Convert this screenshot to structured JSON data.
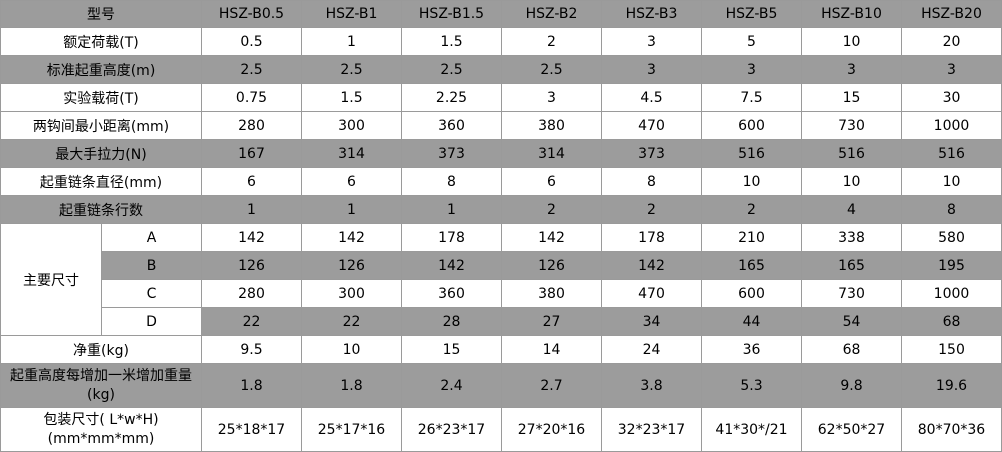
{
  "header": {
    "label": "型号",
    "models": [
      "HSZ-B0.5",
      "HSZ-B1",
      "HSZ-B1.5",
      "HSZ-B2",
      "HSZ-B3",
      "HSZ-B5",
      "HSZ-B10",
      "HSZ-B20"
    ]
  },
  "rows": {
    "rated_load": {
      "label": "额定荷载(T)",
      "values": [
        "0.5",
        "1",
        "1.5",
        "2",
        "3",
        "5",
        "10",
        "20"
      ]
    },
    "std_lift_height": {
      "label": "标准起重高度(m)",
      "values": [
        "2.5",
        "2.5",
        "2.5",
        "2.5",
        "3",
        "3",
        "3",
        "3"
      ]
    },
    "test_load": {
      "label": "实验载荷(T)",
      "values": [
        "0.75",
        "1.5",
        "2.25",
        "3",
        "4.5",
        "7.5",
        "15",
        "30"
      ]
    },
    "min_hook_distance": {
      "label": "两钩间最小距离(mm)",
      "values": [
        "280",
        "300",
        "360",
        "380",
        "470",
        "600",
        "730",
        "1000"
      ]
    },
    "max_hand_pull": {
      "label": "最大手拉力(N)",
      "values": [
        "167",
        "314",
        "373",
        "314",
        "373",
        "516",
        "516",
        "516"
      ]
    },
    "chain_diameter": {
      "label": "起重链条直径(mm)",
      "values": [
        "6",
        "6",
        "8",
        "6",
        "8",
        "10",
        "10",
        "10"
      ]
    },
    "chain_falls": {
      "label": "起重链条行数",
      "values": [
        "1",
        "1",
        "1",
        "2",
        "2",
        "2",
        "4",
        "8"
      ]
    },
    "main_dims": {
      "label": "主要尺寸",
      "A": {
        "label": "A",
        "values": [
          "142",
          "142",
          "178",
          "142",
          "178",
          "210",
          "338",
          "580"
        ]
      },
      "B": {
        "label": "B",
        "values": [
          "126",
          "126",
          "142",
          "126",
          "142",
          "165",
          "165",
          "195"
        ]
      },
      "C": {
        "label": "C",
        "values": [
          "280",
          "300",
          "360",
          "380",
          "470",
          "600",
          "730",
          "1000"
        ]
      },
      "D": {
        "label": "D",
        "values": [
          "22",
          "22",
          "28",
          "27",
          "34",
          "44",
          "54",
          "68"
        ]
      }
    },
    "net_weight": {
      "label": "净重(kg)",
      "values": [
        "9.5",
        "10",
        "15",
        "14",
        "24",
        "36",
        "68",
        "150"
      ]
    },
    "extra_weight_per_meter": {
      "label": "起重高度每增加一米增加重量(kg)",
      "values": [
        "1.8",
        "1.8",
        "2.4",
        "2.7",
        "3.8",
        "5.3",
        "9.8",
        "19.6"
      ]
    },
    "package_size": {
      "label": "包装尺寸( L*w*H)(mm*mm*mm)",
      "values": [
        "25*18*17",
        "25*17*16",
        "26*23*17",
        "27*20*16",
        "32*23*17",
        "41*30*/21",
        "62*50*27",
        "80*70*36"
      ]
    }
  }
}
